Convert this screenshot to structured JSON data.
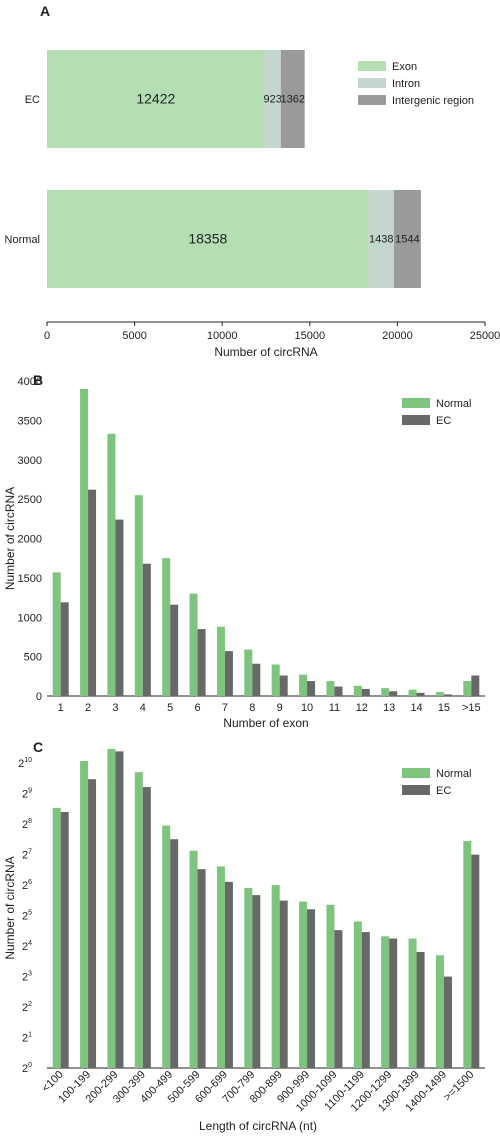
{
  "chart_data": [
    {
      "panel": "A",
      "type": "bar",
      "orientation": "horizontal",
      "stacked": true,
      "categories": [
        "EC",
        "Normal"
      ],
      "series": [
        {
          "name": "Exon",
          "values": [
            12422,
            18358
          ],
          "color": "#b3dfb3"
        },
        {
          "name": "Intron",
          "values": [
            923,
            1438
          ],
          "color": "#c5d6cf"
        },
        {
          "name": "Intergenic region",
          "values": [
            1362,
            1544
          ],
          "color": "#9a9a9a"
        }
      ],
      "xlabel": "Number of circRNA",
      "xlim": [
        0,
        25000
      ],
      "xticks": [
        "0",
        "5000",
        "10000",
        "15000",
        "20000",
        "25000"
      ],
      "legend_position": "top-right",
      "grid": false
    },
    {
      "panel": "B",
      "type": "bar",
      "categories": [
        "1",
        "2",
        "3",
        "4",
        "5",
        "6",
        "7",
        "8",
        "9",
        "10",
        "11",
        "12",
        "13",
        "14",
        "15",
        ">15"
      ],
      "series": [
        {
          "name": "Normal",
          "values": [
            1570,
            3900,
            3330,
            2550,
            1750,
            1300,
            880,
            590,
            400,
            270,
            190,
            130,
            100,
            80,
            50,
            190
          ],
          "color": "#7dc47d"
        },
        {
          "name": "EC",
          "values": [
            1190,
            2620,
            2240,
            1680,
            1160,
            850,
            570,
            410,
            260,
            190,
            120,
            90,
            60,
            40,
            20,
            260
          ],
          "color": "#686868"
        }
      ],
      "xlabel": "Number of exon",
      "ylabel": "Number of circRNA",
      "ylim": [
        0,
        4000
      ],
      "yticks": [
        "0",
        "500",
        "1000",
        "1500",
        "2000",
        "2500",
        "3000",
        "3500",
        "4000"
      ],
      "legend_position": "top-right",
      "grid": false
    },
    {
      "panel": "C",
      "type": "bar",
      "yscale": "log2",
      "categories": [
        "<100",
        "100-199",
        "200-299",
        "300-399",
        "400-499",
        "500-599",
        "600-699",
        "700-799",
        "800-899",
        "900-999",
        "1000-1099",
        "1100-1199",
        "1200-1299",
        "1300-1399",
        "1400-1499",
        ">=1500"
      ],
      "series": [
        {
          "name": "Normal",
          "values": [
            371,
            1079,
            1418,
            836,
            248,
            140,
            98,
            60,
            64,
            44,
            41,
            28,
            20,
            19,
            13,
            175
          ],
          "color": "#7dc47d"
        },
        {
          "name": "EC",
          "values": [
            338,
            712,
            1342,
            596,
            182,
            92,
            69,
            51,
            45,
            37,
            23,
            22,
            19,
            14,
            8,
            128
          ],
          "color": "#686868"
        }
      ],
      "xlabel": "Length of circRNA (nt)",
      "ylabel": "Number of circRNA",
      "ylim_log2": [
        0,
        10.5
      ],
      "yticks": [
        {
          "base": "2",
          "exp": "0"
        },
        {
          "base": "2",
          "exp": "1"
        },
        {
          "base": "2",
          "exp": "2"
        },
        {
          "base": "2",
          "exp": "3"
        },
        {
          "base": "2",
          "exp": "4"
        },
        {
          "base": "2",
          "exp": "5"
        },
        {
          "base": "2",
          "exp": "6"
        },
        {
          "base": "2",
          "exp": "7"
        },
        {
          "base": "2",
          "exp": "8"
        },
        {
          "base": "2",
          "exp": "9"
        },
        {
          "base": "2",
          "exp": "10"
        }
      ],
      "legend_position": "top-right",
      "grid": false
    }
  ]
}
